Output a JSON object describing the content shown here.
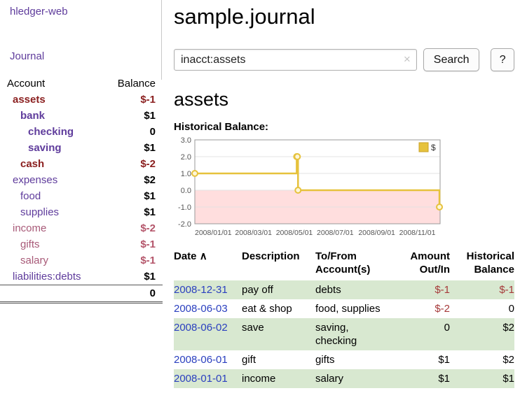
{
  "colors": {
    "brand-purple": "#5f3c9c",
    "link-purple": "#5f3c9c",
    "dark-red": "#8b2020",
    "mauve": "#a85a78",
    "rose": "#b4556a",
    "table-red": "#a63a3a",
    "date-blue": "#2a3fbf",
    "row-green": "#d8e8d0",
    "chart-line": "#e6c23c",
    "chart-line-edge": "#c9a227",
    "chart-negative-region": "#ffdede"
  },
  "sidebar": {
    "brand": "hledger-web",
    "journal_link": "Journal",
    "headers": {
      "account": "Account",
      "balance": "Balance"
    },
    "accounts": [
      {
        "name": "assets",
        "balance": "$-1",
        "indent": 1,
        "bold": true,
        "name_color": "dark-red",
        "balance_color": "dark-red"
      },
      {
        "name": "bank",
        "balance": "$1",
        "indent": 2,
        "bold": true,
        "name_color": "link-purple"
      },
      {
        "name": "checking",
        "balance": "0",
        "indent": 3,
        "bold": true,
        "name_color": "link-purple"
      },
      {
        "name": "saving",
        "balance": "$1",
        "indent": 3,
        "bold": true,
        "name_color": "link-purple"
      },
      {
        "name": "cash",
        "balance": "$-2",
        "indent": 2,
        "bold": true,
        "name_color": "dark-red",
        "balance_color": "dark-red"
      },
      {
        "name": "expenses",
        "balance": "$2",
        "indent": 1,
        "bold": false,
        "name_color": "link-purple"
      },
      {
        "name": "food",
        "balance": "$1",
        "indent": 2,
        "bold": false,
        "name_color": "link-purple"
      },
      {
        "name": "supplies",
        "balance": "$1",
        "indent": 2,
        "bold": false,
        "name_color": "link-purple"
      },
      {
        "name": "income",
        "balance": "$-2",
        "indent": 1,
        "bold": false,
        "name_color": "mauve",
        "balance_color": "rose"
      },
      {
        "name": "gifts",
        "balance": "$-1",
        "indent": 2,
        "bold": false,
        "name_color": "mauve",
        "balance_color": "rose"
      },
      {
        "name": "salary",
        "balance": "$-1",
        "indent": 2,
        "bold": false,
        "name_color": "mauve",
        "balance_color": "rose"
      },
      {
        "name": "liabilities:debts",
        "balance": "$1",
        "indent": 1,
        "bold": false,
        "name_color": "link-purple"
      }
    ],
    "total": "0"
  },
  "main": {
    "title": "sample.journal",
    "search": {
      "value": "inacct:assets",
      "clear_icon": "×",
      "button_label": "Search",
      "help_label": "?"
    },
    "account_heading": "assets",
    "chart_title": "Historical Balance:"
  },
  "chart_data": {
    "type": "line",
    "title": "Historical Balance",
    "step": true,
    "xdomain": [
      "2008-01-01",
      "2009-01-01"
    ],
    "ylim": [
      -2.0,
      3.0
    ],
    "yticks": [
      3.0,
      2.0,
      1.0,
      0.0,
      -1.0,
      -2.0
    ],
    "xticks": [
      "2008/01/01",
      "2008/03/01",
      "2008/05/01",
      "2008/07/01",
      "2008/09/01",
      "2008/11/01"
    ],
    "series": [
      {
        "name": "$",
        "points": [
          [
            "2008-01-01",
            1
          ],
          [
            "2008-06-01",
            2
          ],
          [
            "2008-06-02",
            2
          ],
          [
            "2008-06-03",
            0
          ],
          [
            "2008-12-31",
            -1
          ]
        ]
      }
    ],
    "legend_position": "top-right",
    "grid": true
  },
  "register": {
    "headers": {
      "date": "Date",
      "sort_indicator": "∧",
      "description": "Description",
      "accounts": "To/From Account(s)",
      "amount": "Amount Out/In",
      "balance": "Historical Balance"
    },
    "rows": [
      {
        "date": "2008-12-31",
        "description": "pay off",
        "accounts": "debts",
        "amount": "$-1",
        "balance": "$-1",
        "shaded": true
      },
      {
        "date": "2008-06-03",
        "description": "eat & shop",
        "accounts": "food, supplies",
        "amount": "$-2",
        "balance": "0",
        "shaded": false
      },
      {
        "date": "2008-06-02",
        "description": "save",
        "accounts": "saving,\nchecking",
        "amount": "0",
        "balance": "$2",
        "shaded": true
      },
      {
        "date": "2008-06-01",
        "description": "gift",
        "accounts": "gifts",
        "amount": "$1",
        "balance": "$2",
        "shaded": false
      },
      {
        "date": "2008-01-01",
        "description": "income",
        "accounts": "salary",
        "amount": "$1",
        "balance": "$1",
        "shaded": true
      }
    ]
  }
}
